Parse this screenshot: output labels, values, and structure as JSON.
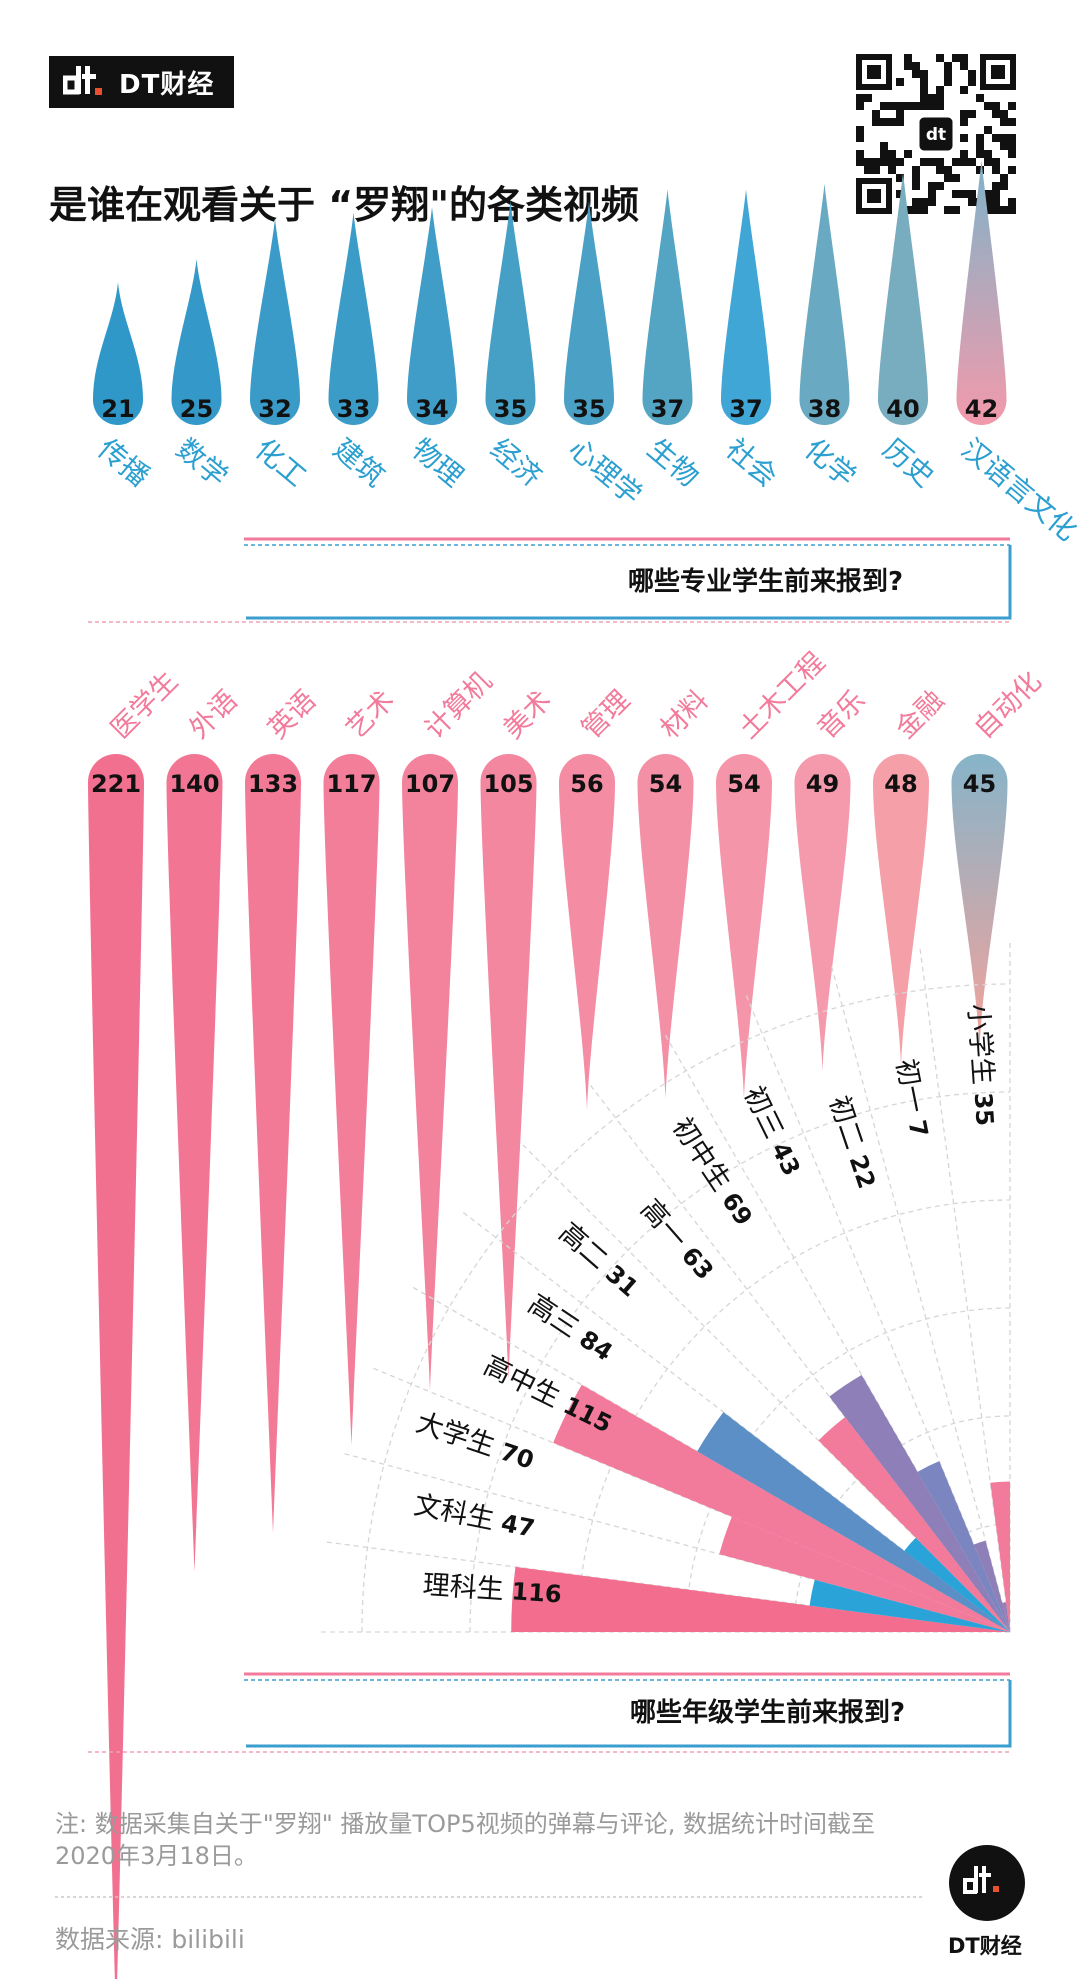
{
  "brand": {
    "name": "DT财经"
  },
  "title": "是谁在观看关于 “罗翔\"的各类视频",
  "banner1": "哪些专业学生前来报到?",
  "banner2": "哪些年级学生前来报到?",
  "note": "注: 数据采集自关于\"罗翔\" 播放量TOP5视频的弹幕与评论, 数据统计时间截至2020年3月18日。",
  "source": "数据来源: bilibili",
  "colors": {
    "blue": "#3a9fcf",
    "pink": "#f27a9b",
    "purple": "#8e7fb8",
    "dark": "#111111"
  },
  "icons": [
    "dt-logo-icon",
    "qr-code-icon"
  ],
  "chart_data": [
    {
      "type": "bar",
      "orientation": "upward teardrops",
      "categories": [
        "传播",
        "数学",
        "化工",
        "建筑",
        "物理",
        "经济",
        "心理学",
        "生物",
        "社会",
        "化学",
        "历史",
        "汉语言文化"
      ],
      "values": [
        21,
        25,
        32,
        33,
        34,
        35,
        35,
        37,
        37,
        38,
        40,
        42
      ]
    },
    {
      "type": "bar",
      "orientation": "downward teardrops",
      "categories": [
        "医学生",
        "外语",
        "英语",
        "艺术",
        "计算机",
        "美术",
        "管理",
        "材料",
        "土木工程",
        "音乐",
        "金融",
        "自动化"
      ],
      "values": [
        221,
        140,
        133,
        117,
        107,
        105,
        56,
        54,
        54,
        49,
        48,
        45
      ]
    },
    {
      "type": "bar",
      "orientation": "radial fan",
      "categories": [
        "理科生",
        "文科生",
        "大学生",
        "高中生",
        "高三",
        "高二",
        "高一",
        "初中生",
        "初三",
        "初二",
        "初一",
        "小学生"
      ],
      "values": [
        116,
        47,
        70,
        115,
        84,
        31,
        63,
        69,
        43,
        22,
        7,
        35
      ]
    }
  ]
}
